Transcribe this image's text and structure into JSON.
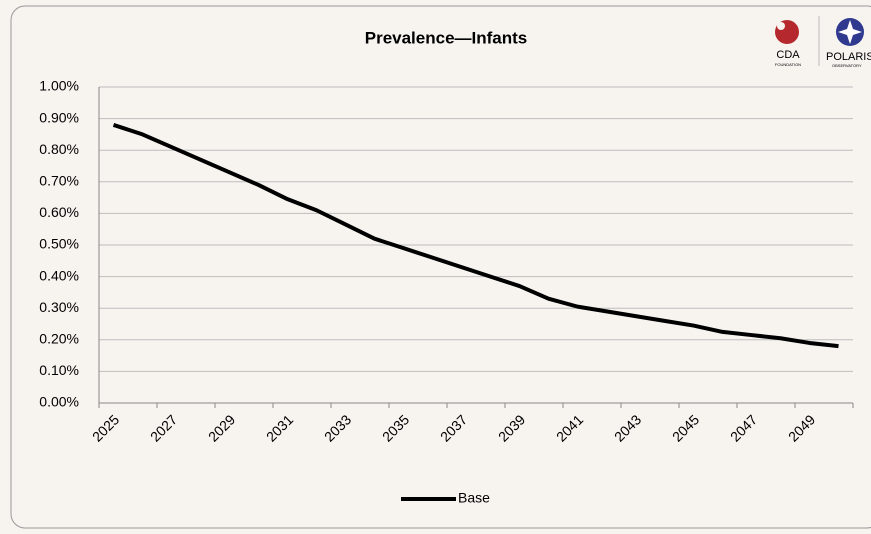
{
  "chart_data": {
    "type": "line",
    "title": "Prevalence—Infants",
    "categories": [
      "2025",
      null,
      "2027",
      null,
      "2029",
      null,
      "2031",
      null,
      "2033",
      null,
      "2035",
      null,
      "2037",
      null,
      "2039",
      null,
      "2041",
      null,
      "2043",
      null,
      "2045",
      null,
      "2047",
      null,
      "2049",
      null
    ],
    "series": [
      {
        "name": "Base",
        "color": "#000000",
        "values": [
          0.88,
          0.85,
          0.81,
          0.77,
          0.73,
          0.69,
          0.645,
          0.61,
          0.565,
          0.52,
          0.49,
          0.46,
          0.43,
          0.4,
          0.37,
          0.33,
          0.305,
          0.29,
          0.275,
          0.26,
          0.245,
          0.225,
          0.215,
          0.205,
          0.19,
          0.18
        ]
      }
    ],
    "ylim": [
      0,
      1
    ],
    "yticks": [
      {
        "value": 0,
        "label": "0.00%"
      },
      {
        "value": 0.1,
        "label": "0.10%"
      },
      {
        "value": 0.2,
        "label": "0.20%"
      },
      {
        "value": 0.3,
        "label": "0.30%"
      },
      {
        "value": 0.4,
        "label": "0.40%"
      },
      {
        "value": 0.5,
        "label": "0.50%"
      },
      {
        "value": 0.6,
        "label": "0.60%"
      },
      {
        "value": 0.7,
        "label": "0.70%"
      },
      {
        "value": 0.8,
        "label": "0.80%"
      },
      {
        "value": 0.9,
        "label": "0.90%"
      },
      {
        "value": 1,
        "label": "1.00%"
      }
    ],
    "grid": true,
    "legend": "bottom"
  },
  "logos": [
    {
      "name": "CDA",
      "sub": "FOUNDATION"
    },
    {
      "name": "POLARIS",
      "sub": "OBSERVATORY"
    }
  ]
}
